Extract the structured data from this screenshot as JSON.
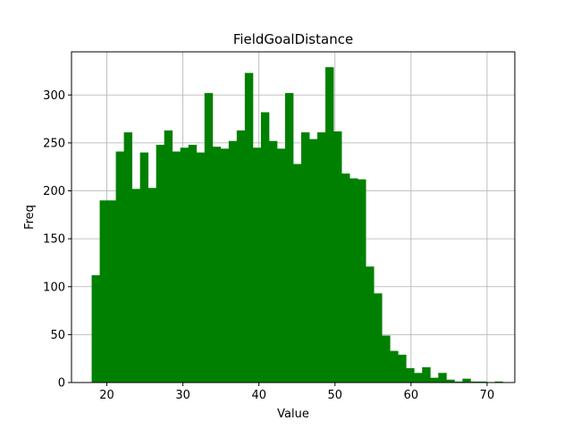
{
  "chart_data": {
    "type": "bar",
    "title": "FieldGoalDistance",
    "xlabel": "Value",
    "ylabel": "Freq",
    "xlim": [
      15.35,
      73.65
    ],
    "ylim": [
      0,
      345
    ],
    "xticks": [
      20,
      30,
      40,
      50,
      60,
      70
    ],
    "yticks": [
      0,
      50,
      100,
      150,
      200,
      250,
      300
    ],
    "grid": true,
    "bar_color": "#008000",
    "bin_width": 1.06,
    "bin_edges_start": 18.0,
    "values": [
      112,
      190,
      190,
      241,
      261,
      202,
      240,
      203,
      248,
      263,
      241,
      245,
      248,
      240,
      302,
      246,
      244,
      252,
      263,
      323,
      245,
      282,
      252,
      244,
      302,
      228,
      261,
      254,
      261,
      329,
      262,
      218,
      213,
      212,
      121,
      93,
      49,
      33,
      29,
      15,
      10,
      16,
      5,
      10,
      3,
      1,
      4,
      1,
      1,
      0,
      1
    ]
  }
}
